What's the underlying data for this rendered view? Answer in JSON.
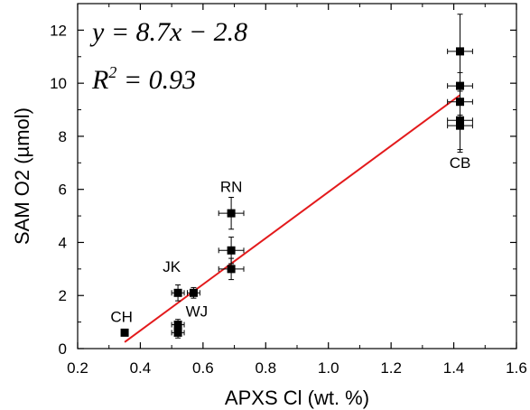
{
  "chart_data": {
    "type": "scatter",
    "xlabel": "APXS Cl (wt. %)",
    "ylabel": "SAM O2 (µmol)",
    "xlim": [
      0.2,
      1.6
    ],
    "ylim": [
      0,
      13
    ],
    "x_ticks": [
      "0.2",
      "0.4",
      "0.6",
      "0.8",
      "1.0",
      "1.2",
      "1.4",
      "1.6"
    ],
    "y_ticks": [
      "0",
      "2",
      "4",
      "6",
      "8",
      "10",
      "12"
    ],
    "grid": false,
    "points": [
      {
        "x": 0.35,
        "y": 0.6,
        "xerr": 0.01,
        "yerr": 0.1
      },
      {
        "x": 0.52,
        "y": 2.1,
        "xerr": 0.02,
        "yerr": 0.3
      },
      {
        "x": 0.57,
        "y": 2.1,
        "xerr": 0.02,
        "yerr": 0.2
      },
      {
        "x": 0.52,
        "y": 0.9,
        "xerr": 0.02,
        "yerr": 0.2
      },
      {
        "x": 0.52,
        "y": 0.6,
        "xerr": 0.02,
        "yerr": 0.2
      },
      {
        "x": 0.69,
        "y": 5.1,
        "xerr": 0.04,
        "yerr": 0.6
      },
      {
        "x": 0.69,
        "y": 3.7,
        "xerr": 0.04,
        "yerr": 0.5
      },
      {
        "x": 0.69,
        "y": 3.0,
        "xerr": 0.04,
        "yerr": 0.4
      },
      {
        "x": 1.42,
        "y": 11.2,
        "xerr": 0.04,
        "yerr": 1.4
      },
      {
        "x": 1.42,
        "y": 9.9,
        "xerr": 0.04,
        "yerr": 0.5
      },
      {
        "x": 1.42,
        "y": 9.3,
        "xerr": 0.04,
        "yerr": 0.5
      },
      {
        "x": 1.42,
        "y": 8.6,
        "xerr": 0.04,
        "yerr": 1.1
      },
      {
        "x": 1.42,
        "y": 8.4,
        "xerr": 0.04,
        "yerr": 1.0
      }
    ],
    "point_labels": [
      {
        "text": "CH",
        "x": 0.34,
        "y": 1.0
      },
      {
        "text": "JK",
        "x": 0.5,
        "y": 2.9
      },
      {
        "text": "WJ",
        "x": 0.58,
        "y": 1.2
      },
      {
        "text": "RN",
        "x": 0.69,
        "y": 5.9
      },
      {
        "text": "CB",
        "x": 1.42,
        "y": 6.8
      }
    ],
    "fit_line": {
      "slope": 8.7,
      "intercept": -2.8,
      "x_range": [
        0.35,
        1.42
      ],
      "color": "#e31a1c"
    },
    "annotations": {
      "equation": "y = 8.7x − 2.8",
      "r_squared": "R² = 0.93"
    }
  }
}
